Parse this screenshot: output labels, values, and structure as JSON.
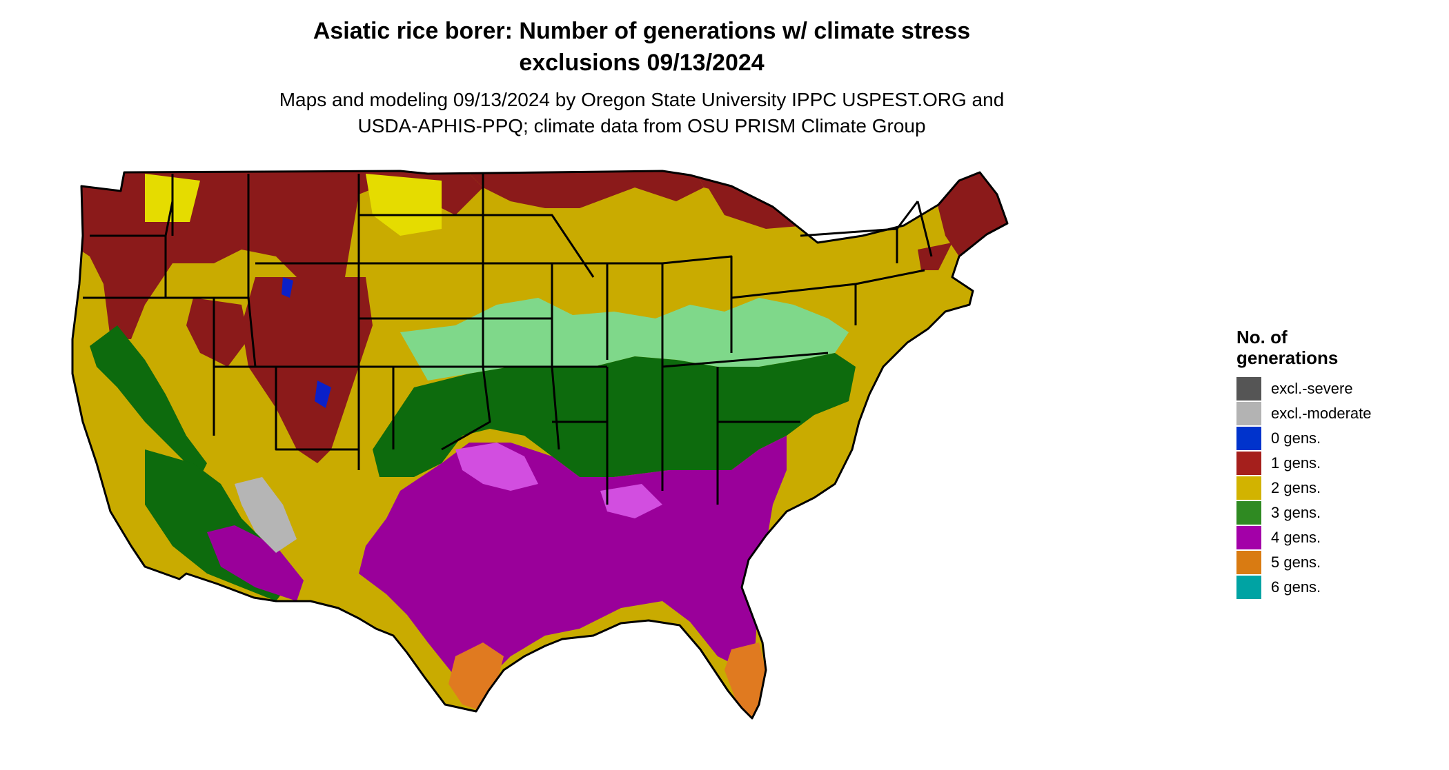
{
  "title": {
    "line1": "Asiatic rice borer: Number of generations w/ climate stress",
    "line2": "exclusions 09/13/2024"
  },
  "subtitle": {
    "line1": "Maps and modeling 09/13/2024 by Oregon State University IPPC USPEST.ORG and",
    "line2": "USDA-APHIS-PPQ; climate data from OSU PRISM Climate Group"
  },
  "legend": {
    "title_line1": "No. of",
    "title_line2": "generations",
    "items": [
      {
        "label": "excl.-severe",
        "color": "#555555"
      },
      {
        "label": "excl.-moderate",
        "color": "#b3b3b3"
      },
      {
        "label": "0 gens.",
        "color": "#0033cc"
      },
      {
        "label": "1 gens.",
        "color": "#a51f1c"
      },
      {
        "label": "2 gens.",
        "color": "#d2b300"
      },
      {
        "label": "3 gens.",
        "color": "#2f8a22"
      },
      {
        "label": "4 gens.",
        "color": "#a300a8"
      },
      {
        "label": "5 gens.",
        "color": "#d97b12"
      },
      {
        "label": "6 gens.",
        "color": "#00a3a3"
      }
    ]
  },
  "map_colors": {
    "one_gen": "#8b1a1a",
    "two_gen": "#c9ab00",
    "two_gen_light": "#e5dc00",
    "three_gen": "#0d6b0d",
    "three_gen_light": "#7fd88a",
    "four_gen": "#9a009a",
    "four_gen_light": "#d24ee0",
    "five_gen": "#e07a20",
    "zero_gen": "#0b20c8",
    "excl_moderate": "#b5b5b5",
    "boundary": "#000000"
  }
}
